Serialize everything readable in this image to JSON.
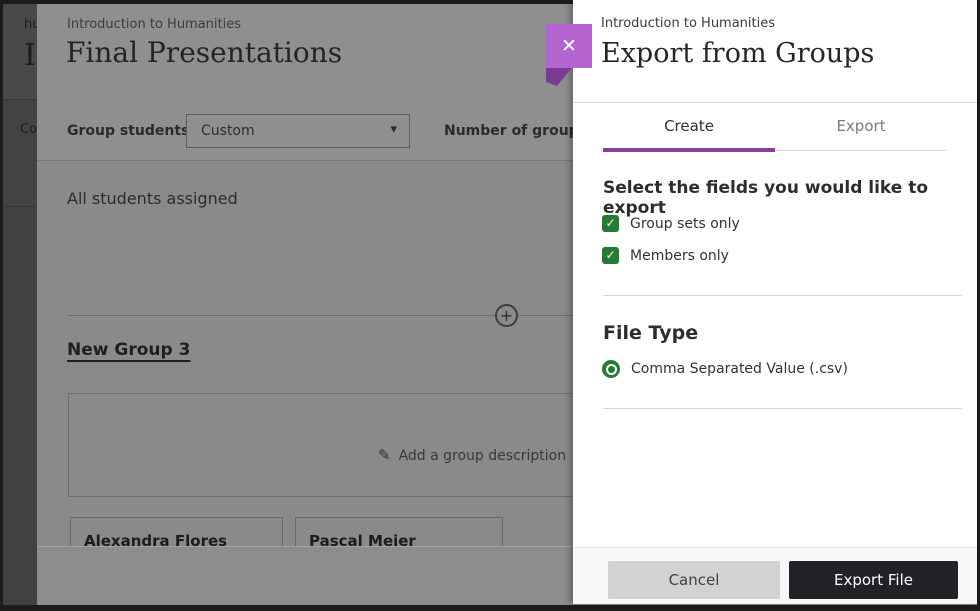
{
  "base_strip": {
    "fragments": {
      "f1": "hu",
      "f2": "I",
      "f3": "Co"
    }
  },
  "background_page": {
    "breadcrumb": "Introduction to Humanities",
    "title": "Final Presentations",
    "group_students_label": "Group students",
    "group_students_value": "Custom",
    "number_of_groups_label": "Number of groups",
    "status_text": "All students assigned",
    "group_name": "New Group 3",
    "add_description_label": "Add a group description",
    "members": [
      {
        "name": "Alexandra Flores"
      },
      {
        "name": "Pascal Meier"
      }
    ]
  },
  "panel": {
    "breadcrumb": "Introduction to Humanities",
    "title": "Export from Groups",
    "tabs": [
      {
        "label": "Create",
        "active": true
      },
      {
        "label": "Export",
        "active": false
      }
    ],
    "fields_heading": "Select the fields you would like to export",
    "checkboxes": [
      {
        "label": "Group sets only",
        "checked": true
      },
      {
        "label": "Members only",
        "checked": true
      }
    ],
    "file_type_heading": "File Type",
    "file_type_options": [
      {
        "label": "Comma Separated Value (.csv)",
        "selected": true
      }
    ],
    "footer": {
      "cancel_label": "Cancel",
      "export_label": "Export File"
    }
  },
  "icons": {
    "close": "✕",
    "caret_down": "▾",
    "check": "✓",
    "pencil": "✎",
    "plus": "+"
  },
  "colors": {
    "accent_purple": "#8d3c9c",
    "close_button_purple": "#b464cf",
    "close_fold_purple": "#7c3b93",
    "success_green": "#267b32",
    "export_button_dark": "#232126",
    "cancel_button_gray": "#d2d2d2",
    "dim_overlay_gray": "#8a8a8a"
  }
}
